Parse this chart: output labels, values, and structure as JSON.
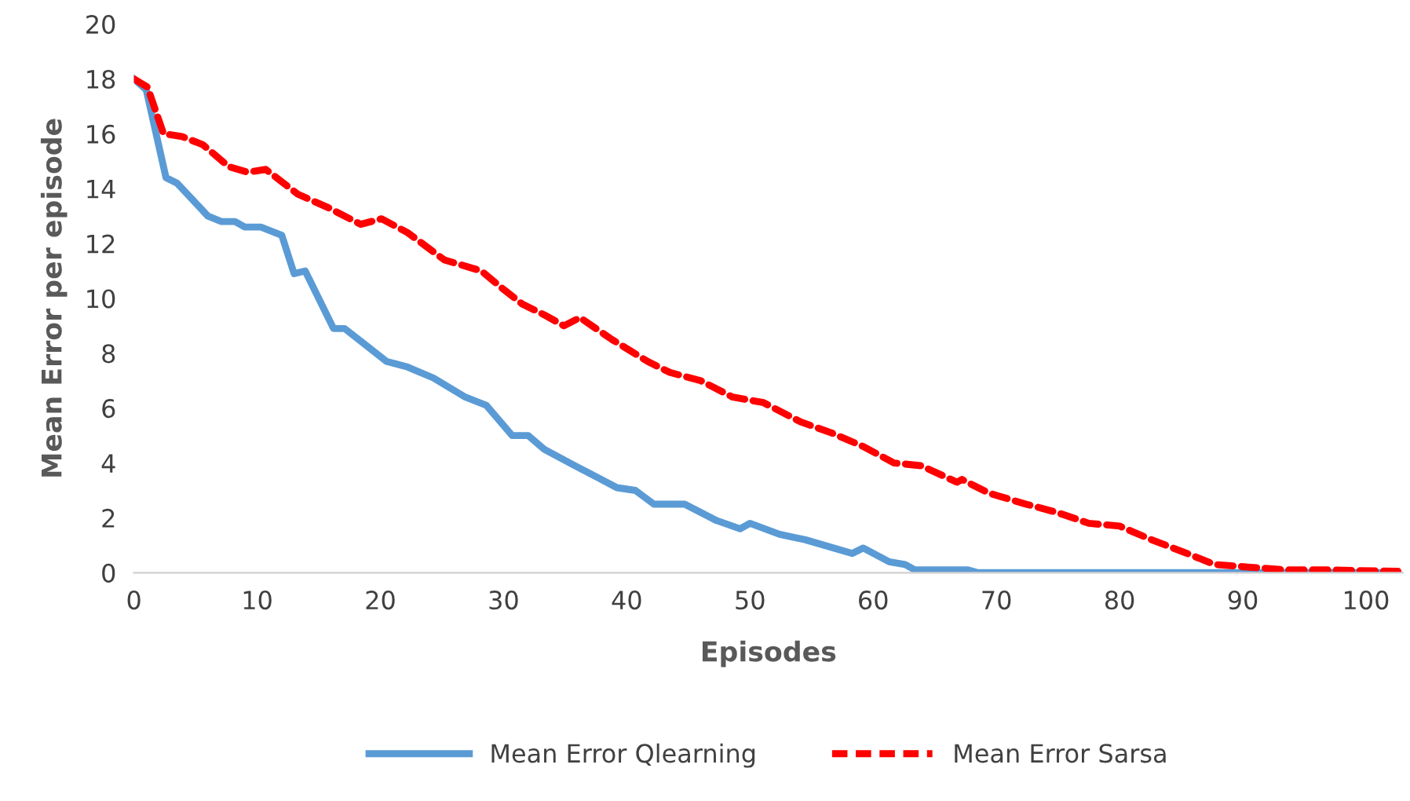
{
  "chart_data": {
    "type": "line",
    "xlabel": "Episodes",
    "ylabel": "Mean Error per episode",
    "xlim": [
      0,
      103
    ],
    "xticks": [
      0,
      10,
      20,
      30,
      40,
      50,
      60,
      70,
      80,
      90,
      100
    ],
    "ylim": [
      0,
      20
    ],
    "yticks": [
      0,
      2,
      4,
      6,
      8,
      10,
      12,
      14,
      16,
      18,
      20
    ],
    "grid": false,
    "legend": "bottom",
    "marker": "none",
    "series": [
      {
        "name": "Mean Error Qlearning",
        "color": "#5b9bd5",
        "line_style": "solid",
        "x": [
          0,
          1,
          2.6,
          3.5,
          6,
          7.1,
          8.2,
          9,
          10.3,
          12,
          13,
          13.9,
          16.2,
          17.1,
          18.8,
          20.5,
          22.2,
          24.3,
          26.9,
          28.6,
          30.7,
          32,
          33.3,
          35.8,
          39.2,
          40.7,
          42.2,
          44.7,
          47.3,
          49.2,
          50,
          52.4,
          54.5,
          58.3,
          59.2,
          61.3,
          62.6,
          63.4,
          67.7,
          68.5,
          80,
          90,
          102
        ],
        "values": [
          18,
          17.6,
          14.4,
          14.2,
          13.0,
          12.8,
          12.8,
          12.6,
          12.6,
          12.3,
          10.9,
          11.0,
          8.9,
          8.9,
          8.3,
          7.7,
          7.5,
          7.1,
          6.4,
          6.1,
          5.0,
          5.0,
          4.5,
          3.9,
          3.1,
          3.0,
          2.5,
          2.5,
          1.9,
          1.6,
          1.8,
          1.4,
          1.2,
          0.7,
          0.9,
          0.4,
          0.3,
          0.1,
          0.1,
          0,
          0,
          0,
          0
        ]
      },
      {
        "name": "Mean Error Sarsa",
        "color": "#ff0000",
        "line_style": "dashed",
        "x": [
          0,
          1.1,
          2.4,
          3.9,
          5.6,
          7.7,
          9.2,
          10.7,
          13.3,
          15.8,
          18.4,
          20.1,
          22.2,
          25.2,
          28.2,
          29.8,
          31.5,
          33.3,
          34.9,
          36.2,
          38.8,
          41.7,
          43.5,
          46,
          48.6,
          51.1,
          54.1,
          56.6,
          59.2,
          61.7,
          63.9,
          66.8,
          67.2,
          69.4,
          72.4,
          74.9,
          77.5,
          80,
          82.6,
          85.5,
          87.7,
          90.6,
          93.6,
          97,
          102.6
        ],
        "values": [
          18,
          17.7,
          16.0,
          15.9,
          15.6,
          14.8,
          14.6,
          14.7,
          13.8,
          13.3,
          12.7,
          12.9,
          12.4,
          11.4,
          11.0,
          10.4,
          9.8,
          9.4,
          9.0,
          9.3,
          8.5,
          7.7,
          7.3,
          7.0,
          6.4,
          6.2,
          5.5,
          5.1,
          4.6,
          4.0,
          3.9,
          3.3,
          3.4,
          2.9,
          2.5,
          2.2,
          1.8,
          1.7,
          1.2,
          0.7,
          0.3,
          0.2,
          0.1,
          0.1,
          0.05
        ]
      }
    ]
  }
}
